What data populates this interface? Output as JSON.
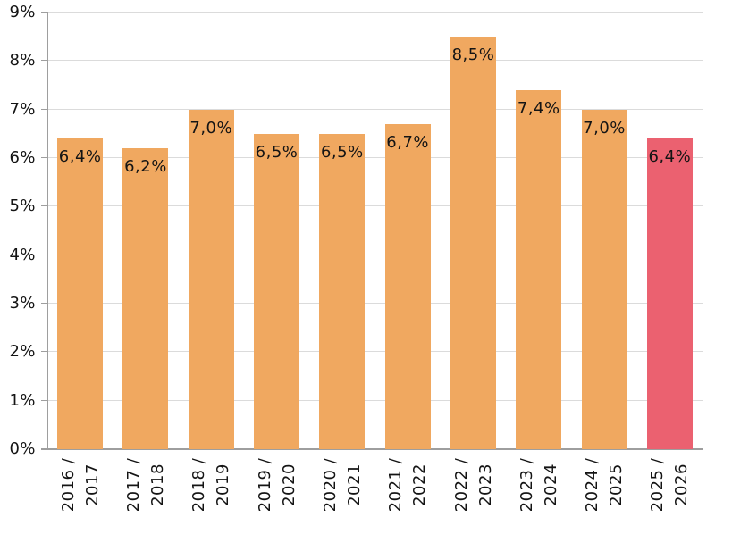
{
  "chart_data": {
    "type": "bar",
    "title": "",
    "xlabel": "",
    "ylabel": "",
    "categories": [
      "2016 /\n2017",
      "2017 /\n2018",
      "2018 /\n2019",
      "2019 /\n2020",
      "2020 /\n2021",
      "2021 /\n2022",
      "2022 /\n2023",
      "2023 /\n2024",
      "2024 /\n2025",
      "2025 /\n2026"
    ],
    "values": [
      6.4,
      6.2,
      7.0,
      6.5,
      6.5,
      6.7,
      8.5,
      7.4,
      7.0,
      6.4
    ],
    "value_labels": [
      "6,4%",
      "6,2%",
      "7,0%",
      "6,5%",
      "6,5%",
      "6,7%",
      "8,5%",
      "7,4%",
      "7,0%",
      "6,4%"
    ],
    "highlight_index": 9,
    "ylim": [
      0,
      9
    ],
    "yticks": [
      {
        "value": 0,
        "label": "0%"
      },
      {
        "value": 1,
        "label": "1%"
      },
      {
        "value": 2,
        "label": "2%"
      },
      {
        "value": 3,
        "label": "3%"
      },
      {
        "value": 4,
        "label": "4%"
      },
      {
        "value": 5,
        "label": "5%"
      },
      {
        "value": 6,
        "label": "6%"
      },
      {
        "value": 7,
        "label": "7%"
      },
      {
        "value": 8,
        "label": "8%"
      },
      {
        "value": 9,
        "label": "9%"
      }
    ],
    "grid": true,
    "legend": false,
    "colors": {
      "bar": "#F0A860",
      "highlight": "#EB6170",
      "gridline": "#DBDBDB",
      "axis": "#9E9E9E",
      "text": "#141414"
    }
  }
}
